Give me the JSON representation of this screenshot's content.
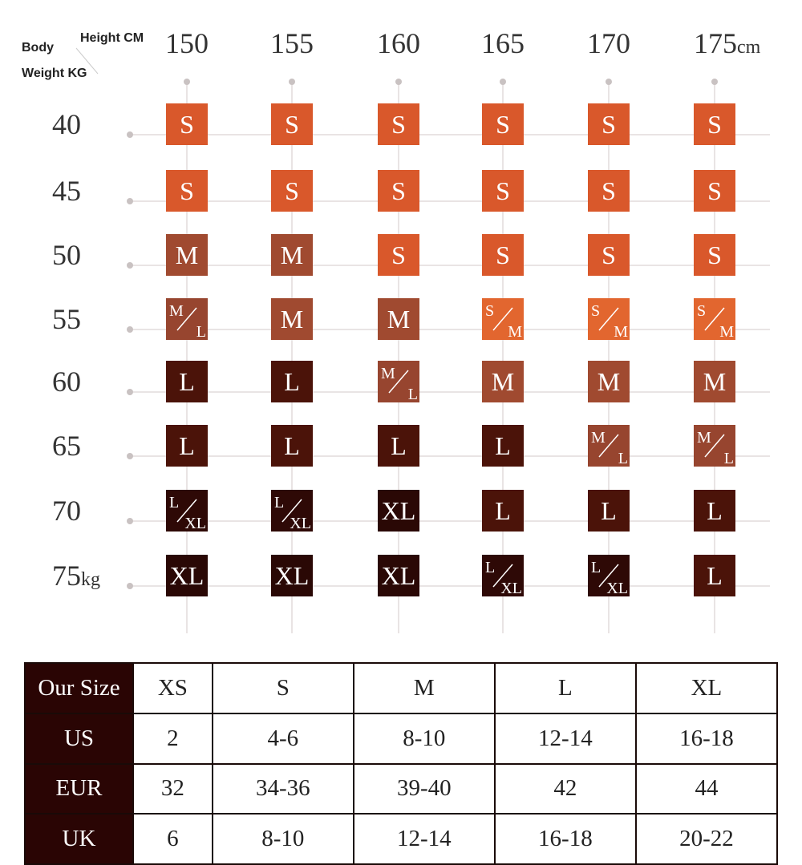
{
  "corner": {
    "body": "Body",
    "height": "Height CM",
    "weight": "Weight KG"
  },
  "heights": [
    "150",
    "155",
    "160",
    "165",
    "170",
    "175"
  ],
  "height_unit": "cm",
  "weights": [
    "40",
    "45",
    "50",
    "55",
    "60",
    "65",
    "70",
    "75"
  ],
  "weight_unit": "kg",
  "size_colors": {
    "S": "#d9582b",
    "S/M": "#e2662f",
    "M": "#a04a30",
    "M/L": "#97452f",
    "L": "#4b1309",
    "L/XL": "#2e0906",
    "XL": "#2a0805"
  },
  "grid": [
    [
      "S",
      "S",
      "S",
      "S",
      "S",
      "S"
    ],
    [
      "S",
      "S",
      "S",
      "S",
      "S",
      "S"
    ],
    [
      "M",
      "M",
      "S",
      "S",
      "S",
      "S"
    ],
    [
      [
        "M",
        "L"
      ],
      "M",
      "M",
      [
        "S",
        "M"
      ],
      [
        "S",
        "M"
      ],
      [
        "S",
        "M"
      ]
    ],
    [
      "L",
      "L",
      [
        "M",
        "L"
      ],
      "M",
      "M",
      "M"
    ],
    [
      "L",
      "L",
      "L",
      "L",
      [
        "M",
        "L"
      ],
      [
        "M",
        "L"
      ]
    ],
    [
      [
        "L",
        "XL"
      ],
      [
        "L",
        "XL"
      ],
      "XL",
      "L",
      "L",
      "L"
    ],
    [
      "XL",
      "XL",
      "XL",
      [
        "L",
        "XL"
      ],
      [
        "L",
        "XL"
      ],
      "L"
    ]
  ],
  "table": {
    "header": [
      "Our Size",
      "XS",
      "S",
      "M",
      "L",
      "XL"
    ],
    "rows": [
      [
        "US",
        "2",
        "4-6",
        "8-10",
        "12-14",
        "16-18"
      ],
      [
        "EUR",
        "32",
        "34-36",
        "39-40",
        "42",
        "44"
      ],
      [
        "UK",
        "6",
        "8-10",
        "12-14",
        "16-18",
        "20-22"
      ]
    ]
  }
}
